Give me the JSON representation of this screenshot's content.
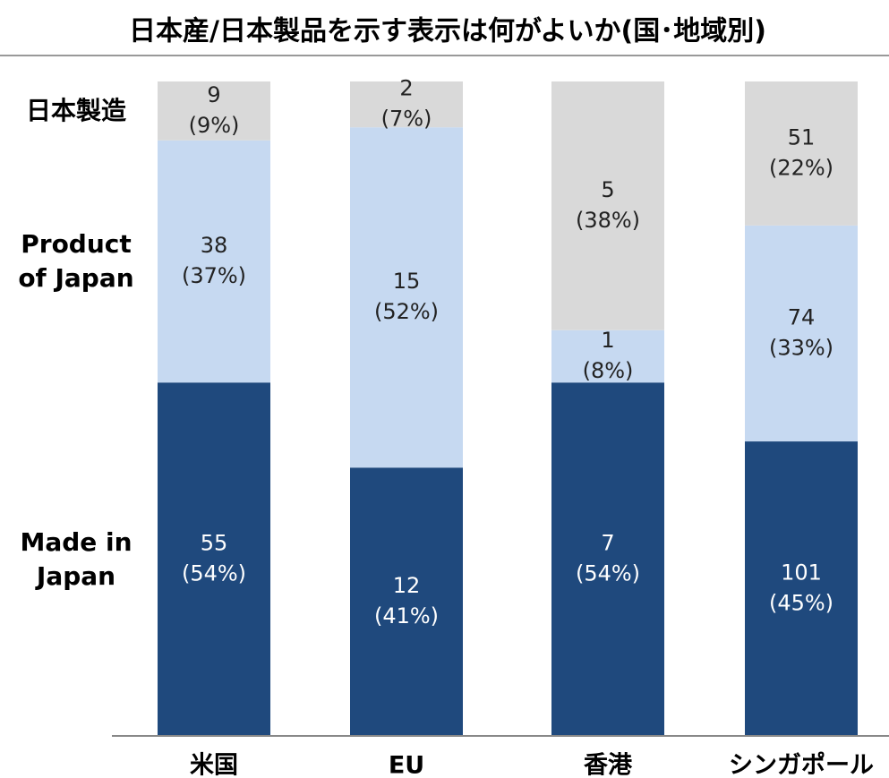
{
  "chart_data": {
    "type": "stacked_bar",
    "title": "日本産/日本製品を示す表示は何がよいか(国･地域別)",
    "categories": [
      "米国",
      "EU",
      "香港",
      "シンガポール"
    ],
    "ylim": [
      0,
      100
    ],
    "series": [
      {
        "name": "Made in Japan",
        "color": "#1f497d",
        "values": [
          54,
          41,
          54,
          45
        ],
        "value_labels": [
          "(54%)",
          "(41%)",
          "(54%)",
          "(45%)"
        ],
        "counts": [
          55,
          12,
          7,
          101
        ]
      },
      {
        "name": "Product of Japan",
        "color": "#c6d9f1",
        "values": [
          37,
          52,
          8,
          33
        ],
        "value_labels": [
          "(37%)",
          "(52%)",
          "(8%)",
          "(33%)"
        ],
        "counts": [
          38,
          15,
          1,
          74
        ]
      },
      {
        "name": "日本製造",
        "color": "#d9d9d9",
        "values": [
          9,
          7,
          38,
          22
        ],
        "value_labels": [
          "(9%)",
          "(7%)",
          "(38%)",
          "(22%)"
        ],
        "counts": [
          9,
          2,
          5,
          51
        ]
      }
    ]
  }
}
